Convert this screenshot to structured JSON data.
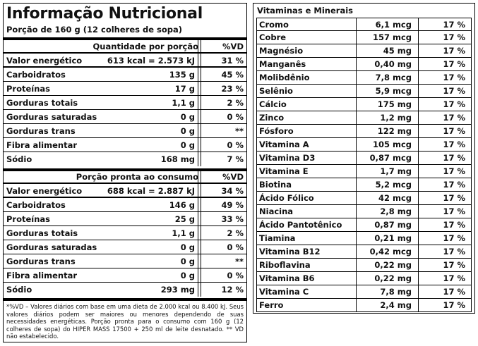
{
  "title": "Informação Nutricional",
  "portion": "Porção de 160 g (12 colheres de sopa)",
  "section1": {
    "header_qty": "Quantidade por porção",
    "header_vd": "%VD",
    "rows": [
      {
        "name": "Valor energético",
        "qty": "613 kcal = 2.573 kJ",
        "vd": "31 %"
      },
      {
        "name": "Carboidratos",
        "qty": "135 g",
        "vd": "45 %"
      },
      {
        "name": "Proteínas",
        "qty": "17 g",
        "vd": "23 %"
      },
      {
        "name": "Gorduras totais",
        "qty": "1,1 g",
        "vd": "2 %"
      },
      {
        "name": "Gorduras saturadas",
        "qty": "0 g",
        "vd": "0 %"
      },
      {
        "name": "Gorduras trans",
        "qty": "0 g",
        "vd": "**"
      },
      {
        "name": "Fibra alimentar",
        "qty": "0 g",
        "vd": "0 %"
      },
      {
        "name": "Sódio",
        "qty": "168 mg",
        "vd": "7 %"
      }
    ]
  },
  "section2": {
    "header_qty": "Porção pronta ao consumo",
    "header_vd": "%VD",
    "rows": [
      {
        "name": "Valor energético",
        "qty": "688 kcal = 2.887 kJ",
        "vd": "34 %"
      },
      {
        "name": "Carboidratos",
        "qty": "146 g",
        "vd": "49 %"
      },
      {
        "name": "Proteínas",
        "qty": "25 g",
        "vd": "33 %"
      },
      {
        "name": "Gorduras totais",
        "qty": "1,1 g",
        "vd": "2 %"
      },
      {
        "name": "Gorduras saturadas",
        "qty": "0 g",
        "vd": "0 %"
      },
      {
        "name": "Gorduras trans",
        "qty": "0 g",
        "vd": "**"
      },
      {
        "name": "Fibra alimentar",
        "qty": "0 g",
        "vd": "0 %"
      },
      {
        "name": "Sódio",
        "qty": "293 mg",
        "vd": "12 %"
      }
    ]
  },
  "footnote": "*%VD – Valores diários com base em uma dieta de 2.000 kcal ou 8.400 kJ. Seus valores diários podem ser maiores ou menores dependendo de suas necessidades energéticas. Porção pronta para o consumo com 160 g (12 colheres de sopa) do HIPER MASS 17500 + 250 ml de leite desnatado. ** VD não estabelecido.",
  "vitamins": {
    "title": "Vitaminas e Minerais",
    "rows": [
      {
        "name": "Cromo",
        "qty": "6,1 mcg",
        "vd": "17 %"
      },
      {
        "name": "Cobre",
        "qty": "157 mcg",
        "vd": "17 %"
      },
      {
        "name": "Magnésio",
        "qty": "45 mg",
        "vd": "17 %"
      },
      {
        "name": "Manganês",
        "qty": "0,40 mg",
        "vd": "17 %"
      },
      {
        "name": "Molibdênio",
        "qty": "7,8 mcg",
        "vd": "17 %"
      },
      {
        "name": "Selênio",
        "qty": "5,9 mcg",
        "vd": "17 %"
      },
      {
        "name": "Cálcio",
        "qty": "175 mg",
        "vd": "17 %"
      },
      {
        "name": "Zinco",
        "qty": "1,2 mg",
        "vd": "17 %"
      },
      {
        "name": "Fósforo",
        "qty": "122 mg",
        "vd": "17 %"
      },
      {
        "name": "Vitamina A",
        "qty": "105 mcg",
        "vd": "17 %"
      },
      {
        "name": "Vitamina D3",
        "qty": "0,87 mcg",
        "vd": "17 %"
      },
      {
        "name": "Vitamina E",
        "qty": "1,7 mg",
        "vd": "17 %"
      },
      {
        "name": "Biotina",
        "qty": "5,2 mcg",
        "vd": "17 %"
      },
      {
        "name": "Ácido Fólico",
        "qty": "42 mcg",
        "vd": "17 %"
      },
      {
        "name": "Niacina",
        "qty": "2,8 mg",
        "vd": "17 %"
      },
      {
        "name": "Ácido Pantotênico",
        "qty": "0,87 mg",
        "vd": "17 %"
      },
      {
        "name": "Tiamina",
        "qty": "0,21 mg",
        "vd": "17 %"
      },
      {
        "name": "Vitamina B12",
        "qty": "0,42 mcg",
        "vd": "17 %"
      },
      {
        "name": "Riboflavina",
        "qty": "0,22 mg",
        "vd": "17 %"
      },
      {
        "name": "Vitamina B6",
        "qty": "0,22 mg",
        "vd": "17 %"
      },
      {
        "name": "Vitamina C",
        "qty": "7,8 mg",
        "vd": "17 %"
      },
      {
        "name": "Ferro",
        "qty": "2,4 mg",
        "vd": "17 %"
      }
    ]
  }
}
